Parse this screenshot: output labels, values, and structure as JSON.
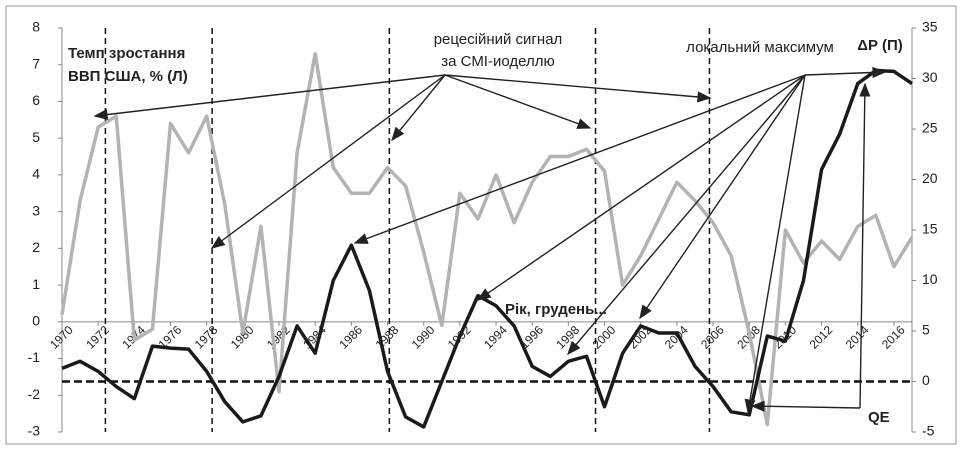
{
  "chart_data": {
    "type": "line",
    "left_axis_label": [
      "Темп зростання",
      "ВВП США, % (Л)"
    ],
    "right_axis_label": "ΔP (П)",
    "annotations": [
      "рецесійний сигнал",
      "за СМІ-иоделлю",
      "локальний максимум",
      "Рік, грудень...",
      "QE"
    ],
    "x": [
      1970,
      1971,
      1972,
      1973,
      1974,
      1975,
      1976,
      1977,
      1978,
      1979,
      1980,
      1981,
      1982,
      1983,
      1984,
      1985,
      1986,
      1987,
      1988,
      1989,
      1990,
      1991,
      1992,
      1993,
      1994,
      1995,
      1996,
      1997,
      1998,
      1999,
      2000,
      2001,
      2002,
      2003,
      2004,
      2005,
      2006,
      2007,
      2008,
      2009,
      2010,
      2011,
      2012,
      2013,
      2014,
      2015,
      2016,
      2017
    ],
    "xlim": [
      1970,
      2017
    ],
    "xticks": [
      1970,
      1972,
      1974,
      1976,
      1978,
      1980,
      1982,
      1984,
      1986,
      1988,
      1990,
      1992,
      1994,
      1996,
      1998,
      2000,
      2002,
      2004,
      2006,
      2008,
      2010,
      2012,
      2014,
      2016
    ],
    "ylim": [
      -3,
      8
    ],
    "yticks": [
      -3,
      -2,
      -1,
      0,
      1,
      2,
      3,
      4,
      5,
      6,
      7,
      8
    ],
    "y2lim": [
      -5,
      35
    ],
    "y2ticks": [
      -5,
      0,
      5,
      10,
      15,
      20,
      25,
      30,
      35
    ],
    "signal_years": [
      1972.4,
      1978.3,
      1988.1,
      1999.5,
      2005.8
    ],
    "series": [
      {
        "color": "#b3b3b3",
        "axis": "y",
        "values": [
          0.2,
          3.3,
          5.3,
          5.6,
          -0.5,
          -0.2,
          5.4,
          4.6,
          5.6,
          3.2,
          -0.3,
          2.6,
          -1.9,
          4.6,
          7.3,
          4.2,
          3.5,
          3.5,
          4.2,
          3.7,
          1.9,
          -0.1,
          3.5,
          2.8,
          4.0,
          2.7,
          3.8,
          4.5,
          4.5,
          4.7,
          4.1,
          1.0,
          1.8,
          2.8,
          3.8,
          3.3,
          2.7,
          1.8,
          -0.3,
          -2.8,
          2.5,
          1.6,
          2.2,
          1.7,
          2.6,
          2.9,
          1.5,
          2.3
        ]
      },
      {
        "color": "#1a1a1a",
        "axis": "y2",
        "values": [
          1.3,
          2.0,
          1.0,
          -0.5,
          -1.7,
          3.5,
          3.3,
          3.2,
          1.0,
          -2.0,
          -4.0,
          -3.4,
          0.5,
          5.5,
          2.8,
          10.0,
          13.5,
          9.0,
          1.0,
          -3.5,
          -4.5,
          0.0,
          4.5,
          8.5,
          7.5,
          5.5,
          1.5,
          0.5,
          2.0,
          2.5,
          -2.5,
          2.8,
          5.5,
          4.8,
          4.8,
          1.5,
          -0.5,
          -3.0,
          -3.3,
          4.5,
          4.0,
          10.0,
          21.0,
          24.5,
          29.5,
          30.8,
          30.7,
          29.5
        ]
      }
    ]
  }
}
